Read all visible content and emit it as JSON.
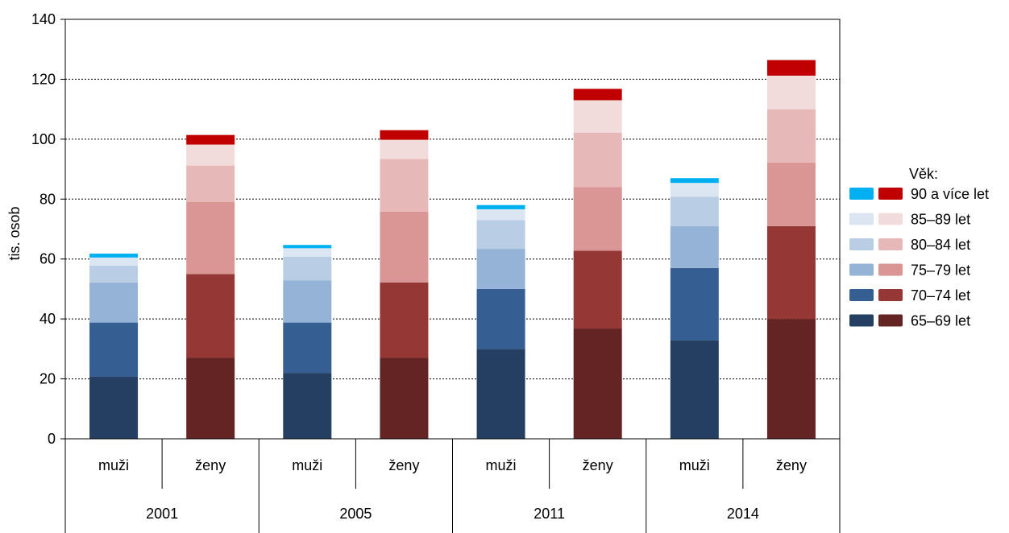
{
  "chart_data": {
    "type": "bar",
    "stacked": true,
    "ylabel": "tis. osob",
    "ylim": [
      0,
      140
    ],
    "yticks": [
      0,
      20,
      40,
      60,
      80,
      100,
      120,
      140
    ],
    "grid": "horizontal dotted",
    "categories": [
      {
        "year": "2001",
        "sex": "muži"
      },
      {
        "year": "2001",
        "sex": "ženy"
      },
      {
        "year": "2005",
        "sex": "muži"
      },
      {
        "year": "2005",
        "sex": "ženy"
      },
      {
        "year": "2011",
        "sex": "muži"
      },
      {
        "year": "2011",
        "sex": "ženy"
      },
      {
        "year": "2014",
        "sex": "muži"
      },
      {
        "year": "2014",
        "sex": "ženy"
      }
    ],
    "years": [
      "2001",
      "2005",
      "2011",
      "2014"
    ],
    "series": [
      {
        "name": "65–69 let",
        "values": [
          20.8,
          27,
          22,
          27,
          30,
          36.8,
          32.8,
          40
        ]
      },
      {
        "name": "70–74 let",
        "values": [
          18,
          28,
          16.8,
          25.2,
          20,
          26,
          24.2,
          31
        ]
      },
      {
        "name": "75–79 let",
        "values": [
          13.4,
          24,
          14,
          23.6,
          13.4,
          21.2,
          14,
          21.2
        ]
      },
      {
        "name": "80–84 let",
        "values": [
          5.6,
          12.2,
          8,
          17.6,
          9.6,
          18.2,
          9.8,
          17.8
        ]
      },
      {
        "name": "85–89 let",
        "values": [
          2.7,
          7,
          2.8,
          6.4,
          3.6,
          10.8,
          4.6,
          11.2
        ]
      },
      {
        "name": "90 a více let",
        "values": [
          1.3,
          3.2,
          1.1,
          3.2,
          1.4,
          3.8,
          1.6,
          5.2
        ]
      }
    ],
    "colors": {
      "muzi": [
        "#243f61",
        "#355f93",
        "#95b3d7",
        "#b9cde5",
        "#dce6f2",
        "#00b0f0"
      ],
      "zeny": [
        "#632423",
        "#953735",
        "#d99694",
        "#e6b9b8",
        "#f2dcdb",
        "#c00000"
      ]
    },
    "legend": {
      "title": "Věk:",
      "position": "right",
      "entries": [
        "90 a více let",
        "85–89 let",
        "80–84 let",
        "75–79 let",
        "70–74 let",
        "65–69 let"
      ]
    }
  }
}
